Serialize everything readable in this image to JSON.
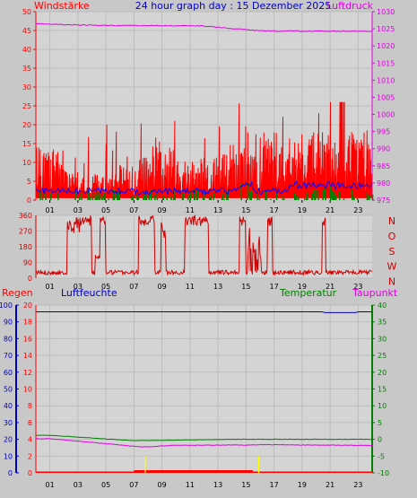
{
  "header": {
    "left_label": "Windstärke",
    "title": "24 hour graph day : 15 Dezember 2025",
    "right_label": "Luftdruck"
  },
  "colors": {
    "background": "#c8c8c8",
    "plot_bg": "#d4d4d4",
    "grid": "#bcbcbc",
    "wind": "#ff0000",
    "gust": "#008000",
    "wind_avg": "#0000ff",
    "pressure": "#e000e0",
    "direction": "#d00000",
    "humidity": "#0000c0",
    "temperature": "#008000",
    "dewpoint": "#e000e0",
    "rain": "#ff0000",
    "axis_green": "#008000",
    "axis_blue": "#0000c0"
  },
  "chart_data": [
    {
      "type": "bar",
      "name": "wind",
      "left_axis": {
        "label": "Windstärke",
        "ticks": [
          "0",
          "5",
          "10",
          "15",
          "20",
          "25",
          "30",
          "35",
          "40",
          "45",
          "50"
        ],
        "range": [
          0,
          50
        ]
      },
      "right_axis": {
        "label": "Luftdruck",
        "ticks": [
          "975",
          "980",
          "985",
          "990",
          "995",
          "1000",
          "1005",
          "1010",
          "1015",
          "1020",
          "1025",
          "1030"
        ],
        "range": [
          975,
          1030
        ]
      },
      "x_ticks": [
        "01",
        "03",
        "05",
        "07",
        "09",
        "11",
        "13",
        "15",
        "17",
        "19",
        "21",
        "23"
      ],
      "series": [
        {
          "name": "wind_max",
          "description": "red spikes, bursts of 5-22, peak 26 near 22:00"
        },
        {
          "name": "gust_bars",
          "description": "green bars 0-5"
        },
        {
          "name": "wind_avg",
          "description": "blue line ~1-5"
        },
        {
          "name": "pressure",
          "start": 1026.5,
          "end": 1024.3
        }
      ]
    },
    {
      "type": "line",
      "name": "direction",
      "left_ticks": [
        "0",
        "90",
        "180",
        "270",
        "360"
      ],
      "right_labels": [
        "N",
        "W",
        "S",
        "O",
        "N"
      ],
      "x_ticks": [
        "01",
        "03",
        "05",
        "07",
        "09",
        "11",
        "13",
        "15",
        "17",
        "19",
        "21",
        "23"
      ]
    },
    {
      "type": "line",
      "name": "humidity_temp",
      "header_labels": {
        "rain": "Regen",
        "humidity": "Luftfeuchte",
        "temp": "Temperatur",
        "dew": "Taupunkt"
      },
      "left_outer_ticks": [
        "0",
        "10",
        "20",
        "30",
        "40",
        "50",
        "60",
        "70",
        "80",
        "90",
        "100"
      ],
      "left_inner_ticks": [
        "0",
        "2",
        "4",
        "6",
        "8",
        "10",
        "12",
        "14",
        "16",
        "18",
        "20"
      ],
      "right_ticks": [
        "40",
        "35",
        "30",
        "25",
        "20",
        "15",
        "10",
        "5",
        "0",
        "-5",
        "-10"
      ],
      "x_ticks": [
        "01",
        "03",
        "05",
        "07",
        "09",
        "11",
        "13",
        "15",
        "17",
        "19",
        "21",
        "23"
      ],
      "humidity_level": 96,
      "temperature_range": [
        -0.5,
        1.5
      ],
      "dewpoint_range": [
        -2.5,
        0.5
      ]
    }
  ]
}
